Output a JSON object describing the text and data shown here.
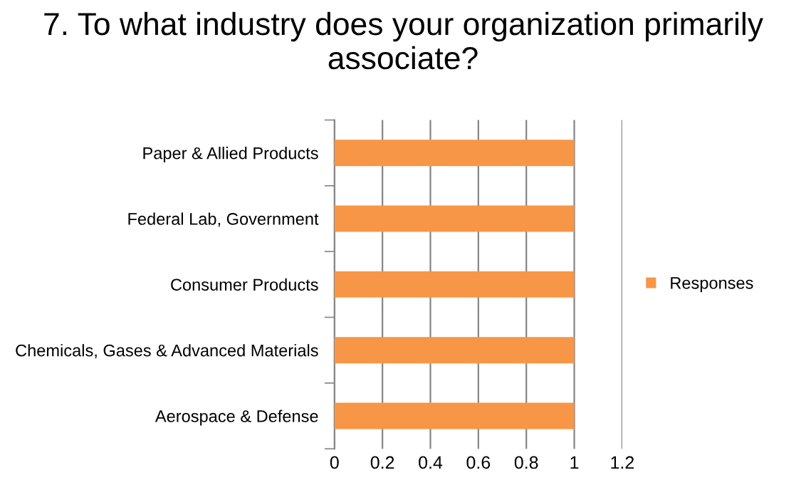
{
  "chart_data": {
    "type": "bar",
    "orientation": "horizontal",
    "title": "7. To what industry does your organization primarily associate?",
    "categories": [
      "Paper & Allied Products",
      "Federal Lab, Government",
      "Consumer Products",
      "Chemicals, Gases & Advanced Materials",
      "Aerospace & Defense"
    ],
    "series": [
      {
        "name": "Responses",
        "color": "#f79646",
        "values": [
          1,
          1,
          1,
          1,
          1
        ]
      }
    ],
    "xlim": [
      0,
      1.2
    ],
    "xticks": [
      0,
      0.2,
      0.4,
      0.6,
      0.8,
      1,
      1.2
    ],
    "grid": "x",
    "legend": "right"
  }
}
